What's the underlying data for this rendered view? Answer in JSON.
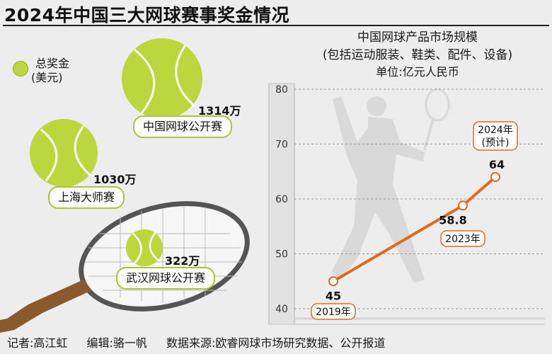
{
  "title": "2024年中国三大网球赛事奖金情况",
  "legend": {
    "line1": "总奖金",
    "line2": "(美元)"
  },
  "prizes": [
    {
      "event": "中国网球公开赛",
      "amount_label": "1314万",
      "amount": 1314
    },
    {
      "event": "上海大师赛",
      "amount_label": "1030万",
      "amount": 1030
    },
    {
      "event": "武汉网球公开赛",
      "amount_label": "322万",
      "amount": 322
    }
  ],
  "chart_titles": {
    "line1": "中国网球产品市场规模",
    "line2": "(包括运动服装、鞋类、配件、设备)",
    "unit": "单位:亿元人民币"
  },
  "chart_data": {
    "type": "line",
    "title": "中国网球产品市场规模",
    "subtitle": "(包括运动服装、鞋类、配件、设备)",
    "ylabel": "单位:亿元人民币",
    "ylim": [
      40,
      80
    ],
    "yticks": [
      "40",
      "50",
      "60",
      "70",
      "80"
    ],
    "series": [
      {
        "points": [
          {
            "x": "2019年",
            "y": 45,
            "value_label": "45",
            "year_label": "2019年"
          },
          {
            "x": "2023年",
            "y": 58.8,
            "value_label": "58.8",
            "year_label": "2023年"
          },
          {
            "x": "2024年(预计)",
            "y": 64,
            "value_label": "64",
            "year_label": "2024年",
            "year_note": "(预计)"
          }
        ]
      }
    ],
    "grid": true,
    "colors": {
      "line": "#e06a1c",
      "ball": "#bcd63e",
      "pill_border": "#a8c63a"
    }
  },
  "footer": {
    "reporter": "记者:高江虹",
    "editor": "编辑:骆一帆",
    "source": "数据来源:欧睿网球市场研究数据、公开报道"
  }
}
